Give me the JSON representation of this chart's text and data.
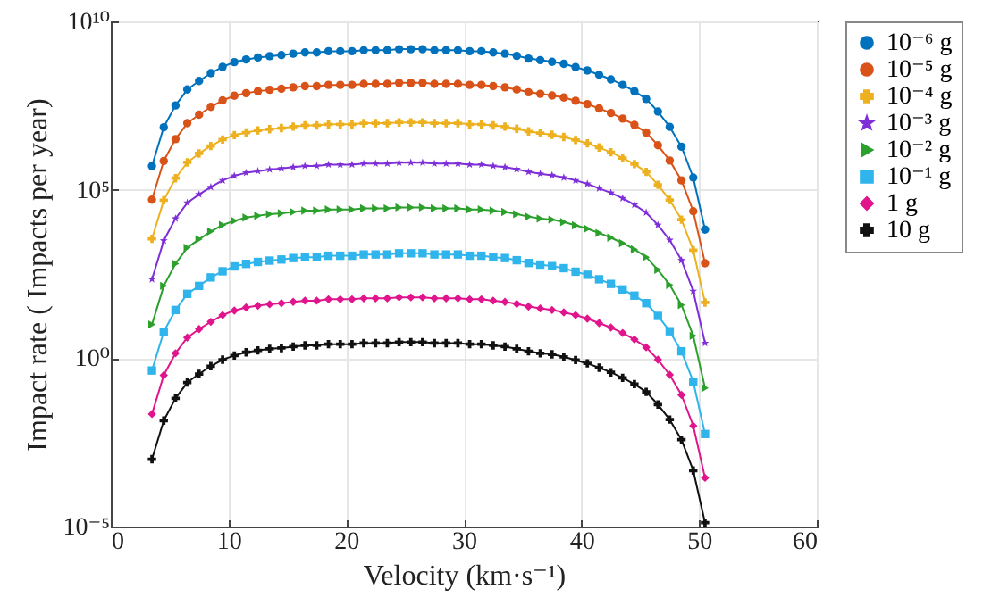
{
  "chart_data": {
    "type": "line",
    "xlabel": "Velocity (km·s⁻¹)",
    "ylabel": "Impact rate ( Impacts per year)",
    "x": [
      3.5,
      4.5,
      5.5,
      6.5,
      7.5,
      8.5,
      9.5,
      10.5,
      11.5,
      12.5,
      13.5,
      14.5,
      15.5,
      16.5,
      17.5,
      18.5,
      19.5,
      20.5,
      21.5,
      22.5,
      23.5,
      24.5,
      25.5,
      26.5,
      27.5,
      28.5,
      29.5,
      30.5,
      31.5,
      32.5,
      33.5,
      34.5,
      35.5,
      36.5,
      37.5,
      38.5,
      39.5,
      40.5,
      41.5,
      42.5,
      43.5,
      44.5,
      45.5,
      46.5,
      47.5,
      48.5,
      49.5,
      50.5
    ],
    "series": [
      {
        "name": "10⁻⁶ g",
        "color": "#0072bd",
        "marker": "circle",
        "values": [
          510000.0,
          7200000.0,
          32000000.0,
          95000000.0,
          170000000.0,
          290000000.0,
          450000000.0,
          620000000.0,
          740000000.0,
          850000000.0,
          930000000.0,
          1000000000.0,
          1100000000.0,
          1200000000.0,
          1200000000.0,
          1300000000.0,
          1300000000.0,
          1300000000.0,
          1400000000.0,
          1400000000.0,
          1400000000.0,
          1500000000.0,
          1500000000.0,
          1500000000.0,
          1400000000.0,
          1400000000.0,
          1400000000.0,
          1300000000.0,
          1300000000.0,
          1200000000.0,
          1100000000.0,
          950000000.0,
          790000000.0,
          710000000.0,
          630000000.0,
          550000000.0,
          440000000.0,
          350000000.0,
          260000000.0,
          190000000.0,
          130000000.0,
          85000000.0,
          50000000.0,
          21000000.0,
          7400000.0,
          1900000.0,
          230000.0,
          6600.0
        ]
      },
      {
        "name": "10⁻⁵ g",
        "color": "#d95319",
        "marker": "circle",
        "values": [
          51000.0,
          720000.0,
          3200000.0,
          9500000.0,
          17000000.0,
          29000000.0,
          45000000.0,
          62000000.0,
          74000000.0,
          85000000.0,
          93000000.0,
          100000000.0,
          110000000.0,
          120000000.0,
          120000000.0,
          130000000.0,
          130000000.0,
          130000000.0,
          140000000.0,
          140000000.0,
          140000000.0,
          150000000.0,
          150000000.0,
          150000000.0,
          140000000.0,
          140000000.0,
          140000000.0,
          130000000.0,
          130000000.0,
          120000000.0,
          110000000.0,
          95000000.0,
          79000000.0,
          71000000.0,
          63000000.0,
          55000000.0,
          44000000.0,
          35000000.0,
          26000000.0,
          19000000.0,
          13000000.0,
          8500000.0,
          5000000.0,
          2100000.0,
          740000.0,
          190000.0,
          23000.0,
          660.0
        ]
      },
      {
        "name": "10⁻⁴ g",
        "color": "#edb120",
        "marker": "cross",
        "values": [
          3500.0,
          49000.0,
          220000.0,
          650000.0,
          1200000.0,
          2000000.0,
          3100000.0,
          4200000.0,
          5000000.0,
          5800000.0,
          6300000.0,
          6800000.0,
          7500000.0,
          8200000.0,
          8200000.0,
          8800000.0,
          8800000.0,
          8800000.0,
          9500000.0,
          9500000.0,
          9500000.0,
          10000000.0,
          10000000.0,
          10000000.0,
          9500000.0,
          9500000.0,
          9500000.0,
          8800000.0,
          8800000.0,
          8200000.0,
          7500000.0,
          6500000.0,
          5400000.0,
          4800000.0,
          4300000.0,
          3700000.0,
          3000000.0,
          2400000.0,
          1800000.0,
          1300000.0,
          880000.0,
          580000.0,
          340000.0,
          140000.0,
          50000.0,
          13000.0,
          1600.0,
          45
        ]
      },
      {
        "name": "10⁻³ g",
        "color": "#7e2fd8",
        "marker": "star",
        "values": [
          220,
          3100.0,
          14000.0,
          41000.0,
          73000.0,
          120000.0,
          190000.0,
          260000.0,
          320000.0,
          360000.0,
          400000.0,
          430000.0,
          470000.0,
          510000.0,
          510000.0,
          560000.0,
          560000.0,
          560000.0,
          600000.0,
          600000.0,
          600000.0,
          640000.0,
          640000.0,
          640000.0,
          600000.0,
          600000.0,
          600000.0,
          560000.0,
          560000.0,
          510000.0,
          470000.0,
          410000.0,
          340000.0,
          300000.0,
          270000.0,
          230000.0,
          190000.0,
          150000.0,
          110000.0,
          81000.0,
          56000.0,
          36000.0,
          21000.0,
          9000.0,
          3200.0,
          810,
          98,
          2.8
        ]
      },
      {
        "name": "10⁻² g",
        "color": "#2ca02c",
        "marker": "triangle",
        "values": [
          10,
          140,
          640,
          1900.0,
          3400.0,
          5800.0,
          9000.0,
          12000.0,
          15000.0,
          17000.0,
          19000.0,
          20000.0,
          22000.0,
          24000.0,
          24000.0,
          26000.0,
          26000.0,
          26000.0,
          28000.0,
          28000.0,
          28000.0,
          30000.0,
          30000.0,
          30000.0,
          28000.0,
          28000.0,
          28000.0,
          26000.0,
          26000.0,
          24000.0,
          22000.0,
          19000.0,
          16000.0,
          14000.0,
          13000.0,
          11000.0,
          8800.0,
          7000.0,
          5200.0,
          3800.0,
          2600.0,
          1700.0,
          1000.0,
          420,
          150,
          38,
          4.6,
          0.13
        ]
      },
      {
        "name": "10⁻¹ g",
        "color": "#30b4ec",
        "marker": "square",
        "values": [
          0.43,
          6.1,
          27,
          81,
          140,
          250,
          380,
          530,
          630,
          720,
          790,
          850,
          940,
          1000.0,
          1000.0,
          1100.0,
          1100.0,
          1100.0,
          1200.0,
          1200.0,
          1200.0,
          1300.0,
          1300.0,
          1300.0,
          1200.0,
          1200.0,
          1200.0,
          1100.0,
          1100.0,
          1000.0,
          940,
          810,
          670,
          600,
          540,
          470,
          370,
          300,
          220,
          160,
          110,
          72,
          43,
          18,
          6.3,
          1.6,
          0.2,
          0.0056
        ]
      },
      {
        "name": "1 g",
        "color": "#e0148c",
        "marker": "diamond",
        "values": [
          0.022,
          0.31,
          1.4,
          4.1,
          7.3,
          12,
          19,
          26,
          32,
          36,
          40,
          43,
          47,
          51,
          51,
          56,
          56,
          56,
          60,
          60,
          60,
          64,
          64,
          64,
          60,
          60,
          60,
          56,
          56,
          51,
          47,
          41,
          34,
          30,
          27,
          23,
          19,
          15,
          11,
          8.1,
          5.6,
          3.6,
          2.1,
          0.9,
          0.32,
          0.081,
          0.0098,
          0.00028
        ]
      },
      {
        "name": "10 g",
        "color": "#111111",
        "marker": "cross",
        "values": [
          0.001,
          0.014,
          0.064,
          0.19,
          0.34,
          0.58,
          0.9,
          1.2,
          1.5,
          1.7,
          1.9,
          2.0,
          2.2,
          2.4,
          2.4,
          2.6,
          2.6,
          2.6,
          2.8,
          2.8,
          2.8,
          3.0,
          3.0,
          3.0,
          2.8,
          2.8,
          2.8,
          2.6,
          2.6,
          2.4,
          2.2,
          1.9,
          1.6,
          1.4,
          1.3,
          1.1,
          0.88,
          0.7,
          0.52,
          0.38,
          0.26,
          0.17,
          0.1,
          0.042,
          0.015,
          0.0038,
          0.00046,
          1.3e-05
        ]
      }
    ],
    "xlim": [
      0,
      60
    ],
    "xticks": [
      0,
      10,
      20,
      30,
      40,
      50,
      60
    ],
    "log": "y",
    "ylim": [
      1e-05,
      10000000000.0
    ],
    "yticks": [
      {
        "value": 1e-05,
        "label": "10⁻⁵"
      },
      {
        "value": 1,
        "label": "10⁰"
      },
      {
        "value": 100000.0,
        "label": "10⁵"
      },
      {
        "value": 10000000000.0,
        "label": "10¹⁰"
      }
    ],
    "grid": true,
    "legend": "right"
  }
}
